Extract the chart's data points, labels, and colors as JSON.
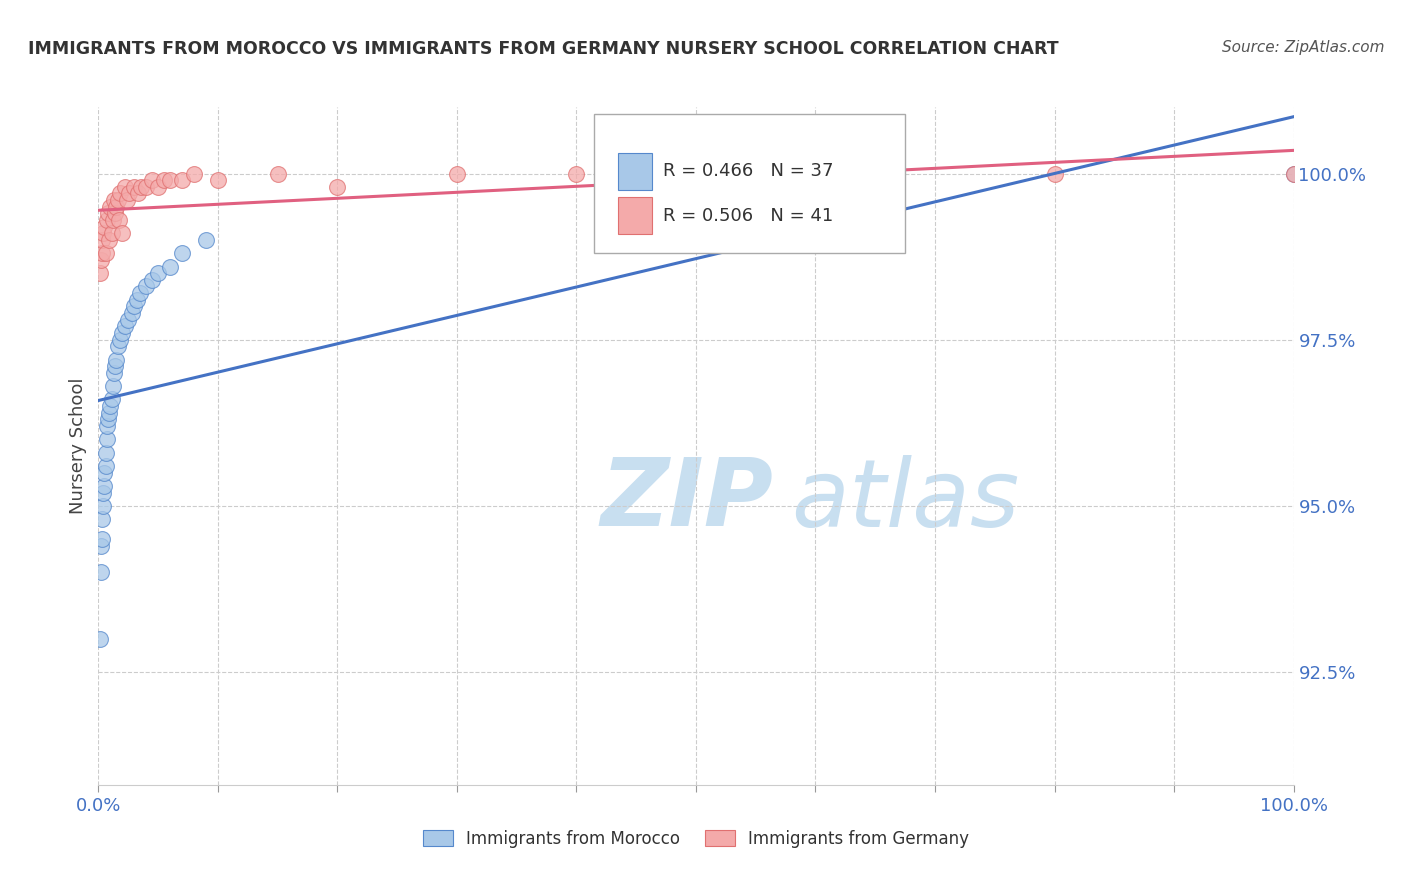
{
  "title": "IMMIGRANTS FROM MOROCCO VS IMMIGRANTS FROM GERMANY NURSERY SCHOOL CORRELATION CHART",
  "source": "Source: ZipAtlas.com",
  "ylabel": "Nursery School",
  "ytick_values": [
    0.925,
    0.95,
    0.975,
    1.0
  ],
  "xmin": 0.0,
  "xmax": 1.0,
  "ymin": 0.908,
  "ymax": 1.01,
  "legend_morocco": "Immigrants from Morocco",
  "legend_germany": "Immigrants from Germany",
  "r_morocco": "0.466",
  "n_morocco": "37",
  "r_germany": "0.506",
  "n_germany": "41",
  "color_morocco_fill": "#A8C8E8",
  "color_germany_fill": "#F4AAAA",
  "color_morocco_edge": "#5588CC",
  "color_germany_edge": "#E07070",
  "color_morocco_line": "#4472C4",
  "color_germany_line": "#E06080",
  "watermark_zip": "ZIP",
  "watermark_atlas": "atlas",
  "watermark_color": "#C8DFF0",
  "morocco_x": [
    0.001,
    0.002,
    0.002,
    0.003,
    0.003,
    0.004,
    0.004,
    0.005,
    0.005,
    0.006,
    0.006,
    0.007,
    0.007,
    0.008,
    0.009,
    0.01,
    0.011,
    0.012,
    0.013,
    0.014,
    0.015,
    0.016,
    0.018,
    0.02,
    0.022,
    0.025,
    0.028,
    0.03,
    0.032,
    0.035,
    0.04,
    0.045,
    0.05,
    0.06,
    0.07,
    0.09,
    1.0
  ],
  "morocco_y": [
    0.93,
    0.94,
    0.944,
    0.945,
    0.948,
    0.95,
    0.952,
    0.953,
    0.955,
    0.956,
    0.958,
    0.96,
    0.962,
    0.963,
    0.964,
    0.965,
    0.966,
    0.968,
    0.97,
    0.971,
    0.972,
    0.974,
    0.975,
    0.976,
    0.977,
    0.978,
    0.979,
    0.98,
    0.981,
    0.982,
    0.983,
    0.984,
    0.985,
    0.986,
    0.988,
    0.99,
    1.0
  ],
  "germany_x": [
    0.001,
    0.002,
    0.003,
    0.003,
    0.004,
    0.005,
    0.006,
    0.007,
    0.008,
    0.009,
    0.01,
    0.011,
    0.012,
    0.013,
    0.014,
    0.015,
    0.016,
    0.017,
    0.018,
    0.02,
    0.022,
    0.024,
    0.026,
    0.03,
    0.033,
    0.036,
    0.04,
    0.045,
    0.05,
    0.055,
    0.06,
    0.07,
    0.08,
    0.1,
    0.15,
    0.2,
    0.3,
    0.4,
    0.6,
    0.8,
    1.0
  ],
  "germany_y": [
    0.985,
    0.987,
    0.988,
    0.99,
    0.991,
    0.992,
    0.988,
    0.993,
    0.994,
    0.99,
    0.995,
    0.991,
    0.993,
    0.996,
    0.994,
    0.995,
    0.996,
    0.993,
    0.997,
    0.991,
    0.998,
    0.996,
    0.997,
    0.998,
    0.997,
    0.998,
    0.998,
    0.999,
    0.998,
    0.999,
    0.999,
    0.999,
    1.0,
    0.999,
    1.0,
    0.998,
    1.0,
    1.0,
    1.0,
    1.0,
    1.0
  ]
}
